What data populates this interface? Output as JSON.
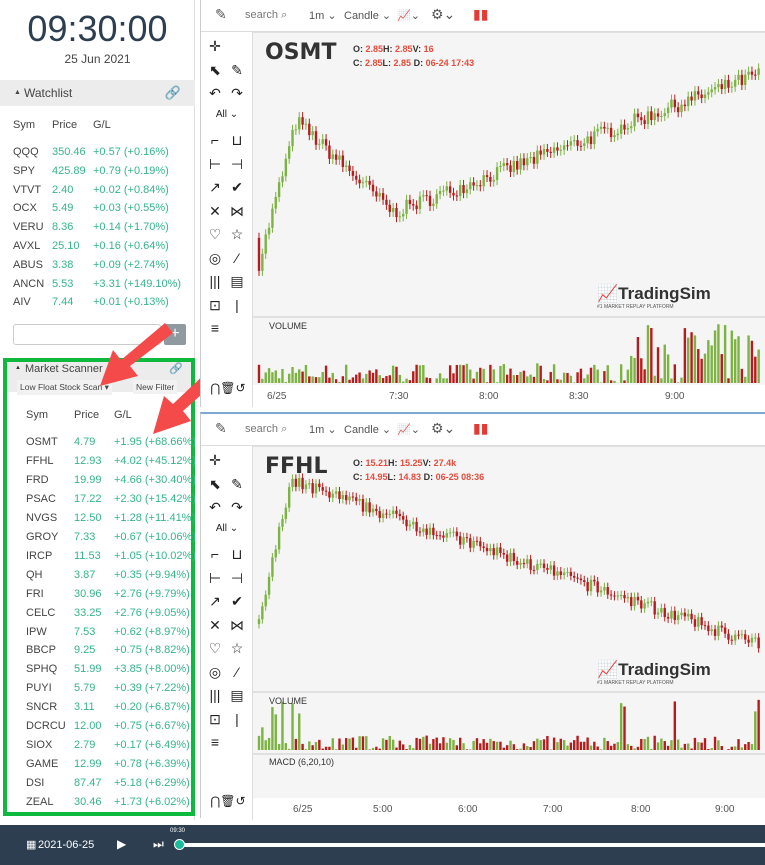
{
  "clock": {
    "time": "09:30:00",
    "date": "25 Jun 2021"
  },
  "watchlist": {
    "title": "Watchlist",
    "columns": [
      "Sym",
      "Price",
      "G/L"
    ],
    "rows": [
      [
        "QQQ",
        "350.46",
        "+0.57 (+0.16%)"
      ],
      [
        "SPY",
        "425.89",
        "+0.79 (+0.19%)"
      ],
      [
        "VTVT",
        "2.40",
        "+0.02 (+0.84%)"
      ],
      [
        "OCX",
        "5.49",
        "+0.03 (+0.55%)"
      ],
      [
        "VERU",
        "8.36",
        "+0.14 (+1.70%)"
      ],
      [
        "AVXL",
        "25.10",
        "+0.16 (+0.64%)"
      ],
      [
        "ABUS",
        "3.38",
        "+0.09 (+2.74%)"
      ],
      [
        "ANCN",
        "5.53",
        "+3.31 (+149.10%)"
      ],
      [
        "AIV",
        "7.44",
        "+0.01 (+0.13%)"
      ]
    ],
    "input_value": "",
    "add_label": "+"
  },
  "scanner": {
    "title": "Market Scanner",
    "scan_select": "Low Float Stock Scan",
    "new_filter": "New Filter",
    "columns": [
      "Sym",
      "Price",
      "G/L"
    ],
    "rows": [
      [
        "OSMT",
        "4.79",
        "+1.95 (+68.66%)"
      ],
      [
        "FFHL",
        "12.93",
        "+4.02 (+45.12%)"
      ],
      [
        "FRD",
        "19.99",
        "+4.66 (+30.40%)"
      ],
      [
        "PSAC",
        "17.22",
        "+2.30 (+15.42%)"
      ],
      [
        "NVGS",
        "12.50",
        "+1.28 (+11.41%)"
      ],
      [
        "GROY",
        "7.33",
        "+0.67 (+10.06%)"
      ],
      [
        "IRCP",
        "11.53",
        "+1.05 (+10.02%)"
      ],
      [
        "QH",
        "3.87",
        "+0.35 (+9.94%)"
      ],
      [
        "FRI",
        "30.96",
        "+2.76 (+9.79%)"
      ],
      [
        "CELC",
        "33.25",
        "+2.76 (+9.05%)"
      ],
      [
        "IPW",
        "7.53",
        "+0.62 (+8.97%)"
      ],
      [
        "BBCP",
        "9.25",
        "+0.75 (+8.82%)"
      ],
      [
        "SPHQ",
        "51.99",
        "+3.85 (+8.00%)"
      ],
      [
        "PUYI",
        "5.79",
        "+0.39 (+7.22%)"
      ],
      [
        "SNCR",
        "3.11",
        "+0.20 (+6.87%)"
      ],
      [
        "DCRCU",
        "12.00",
        "+0.75 (+6.67%)"
      ],
      [
        "SIOX",
        "2.79",
        "+0.17 (+6.49%)"
      ],
      [
        "GAME",
        "12.99",
        "+0.78 (+6.39%)"
      ],
      [
        "DSI",
        "87.47",
        "+5.18 (+6.29%)"
      ],
      [
        "ZEAL",
        "30.46",
        "+1.73 (+6.02%)"
      ]
    ]
  },
  "charts": [
    {
      "symbol": "OSMT",
      "search": "search",
      "interval": "1m",
      "type": "Candle",
      "o": "2.85",
      "h": "2.85",
      "v": "16",
      "c": "2.85",
      "l": "2.85",
      "d": "06-24 17:43",
      "volume_label": "VOLUME",
      "x_ticks": [
        "6/25",
        "7:30",
        "8:00",
        "8:30",
        "9:00"
      ],
      "drawing_filter": "All",
      "logo": "TradingSim",
      "logo_tag": "#1 MARKET REPLAY PLATFORM"
    },
    {
      "symbol": "FFHL",
      "search": "search",
      "interval": "1m",
      "type": "Candle",
      "o": "15.21",
      "h": "15.25",
      "v": "27.4k",
      "c": "14.95",
      "l": "14.83",
      "d": "06-25 08:36",
      "volume_label": "VOLUME",
      "macd_label": "MACD (6,20,10)",
      "x_ticks": [
        "6/25",
        "5:00",
        "6:00",
        "7:00",
        "8:00",
        "9:00"
      ],
      "drawing_filter": "All",
      "logo": "TradingSim",
      "logo_tag": "#1 MARKET REPLAY PLATFORM"
    }
  ],
  "replay": {
    "date": "2021-06-25",
    "current_time": "09:30",
    "progress": 0
  },
  "colors": {
    "up": "#4caf50",
    "down": "#c0392b",
    "gain": "#35b58c",
    "highlight": "#0dba3e",
    "bar": "#2c3e50",
    "annotation": "#f44a4a"
  }
}
